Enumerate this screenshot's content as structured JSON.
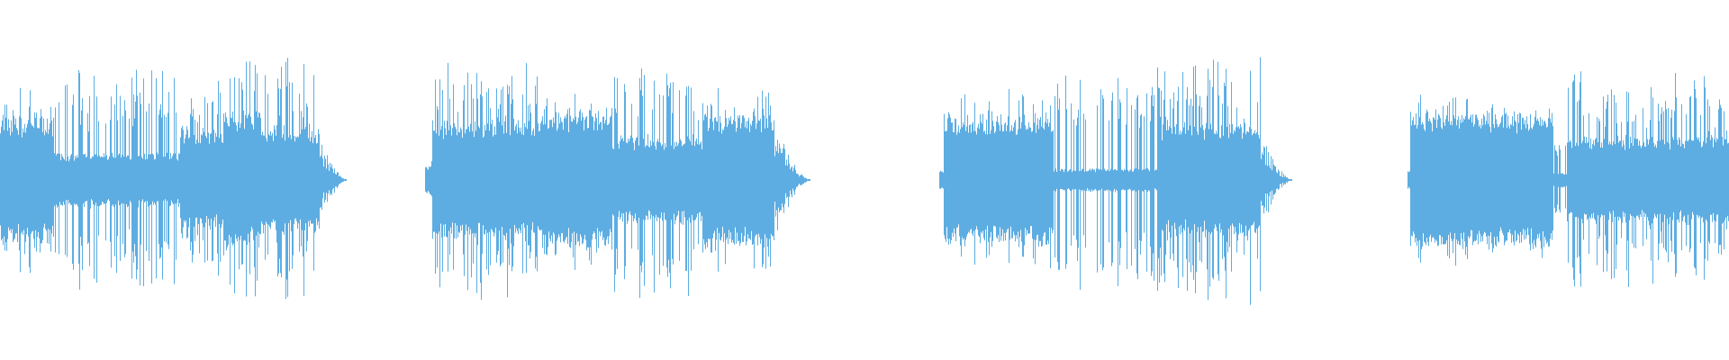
{
  "waveform": {
    "color": "#5dade2",
    "background": "#ffffff",
    "clip_count": 4
  }
}
